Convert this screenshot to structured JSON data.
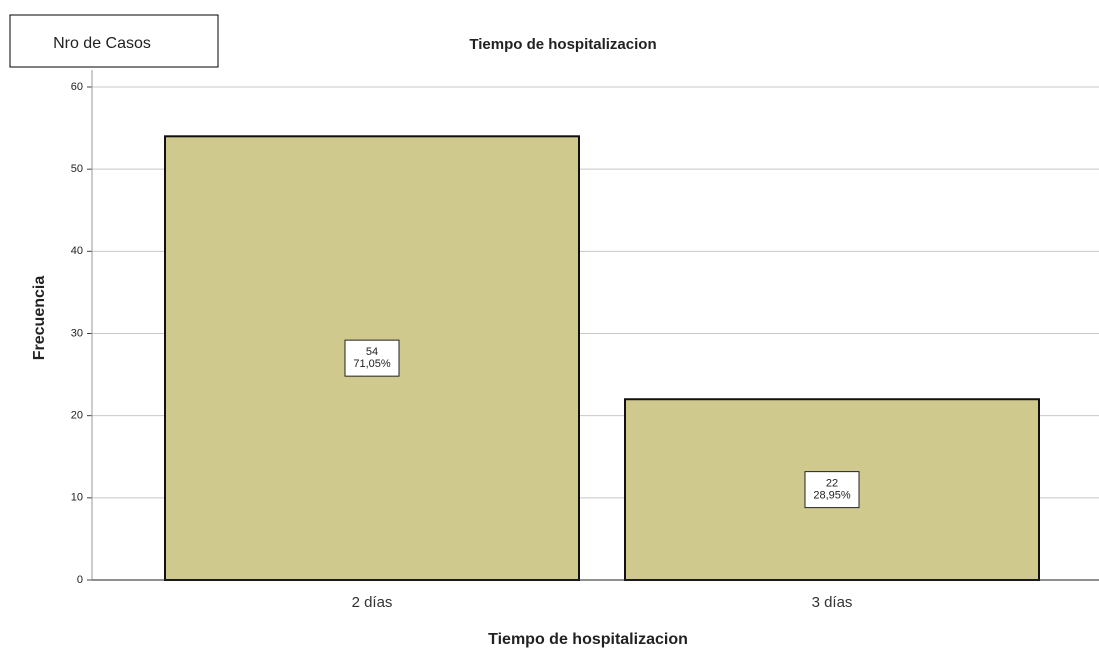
{
  "chart_data": {
    "type": "bar",
    "title": "Tiempo de hospitalizacion",
    "annotation": "Nro de Casos",
    "x_label": "Tiempo de hospitalizacion",
    "y_label": "Frecuencia",
    "categories": [
      "2 días",
      "3 días"
    ],
    "values": [
      54,
      22
    ],
    "percents": [
      71.05,
      28.95
    ],
    "percent_labels": [
      "71,05%",
      "28,95%"
    ],
    "color": "#cfc98e",
    "ylim": [
      0,
      60
    ],
    "yticks": [
      0,
      10,
      20,
      30,
      40,
      50,
      60
    ],
    "grid": true
  }
}
